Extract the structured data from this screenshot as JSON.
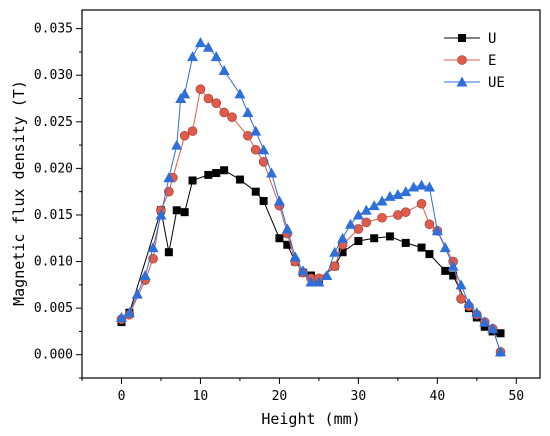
{
  "chart_data": {
    "type": "line",
    "xlabel": "Height (mm)",
    "ylabel": "Magnetic flux density (T)",
    "xlim": [
      -5,
      53
    ],
    "ylim": [
      -0.0025,
      0.037
    ],
    "xticks": [
      0,
      10,
      20,
      30,
      40,
      50
    ],
    "xtick_labels": [
      "0",
      "10",
      "20",
      "30",
      "40",
      "50"
    ],
    "yticks": [
      0.0,
      0.005,
      0.01,
      0.015,
      0.02,
      0.025,
      0.03,
      0.035
    ],
    "ytick_labels": [
      "0.000",
      "0.005",
      "0.010",
      "0.015",
      "0.020",
      "0.025",
      "0.030",
      "0.035"
    ],
    "grid": false,
    "legend_position": "top-right",
    "series": [
      {
        "name": "U",
        "color": "#000000",
        "marker": "square",
        "points": [
          [
            0,
            0.0035
          ],
          [
            1,
            0.0045
          ],
          [
            5,
            0.0155
          ],
          [
            6,
            0.011
          ],
          [
            7,
            0.0155
          ],
          [
            8,
            0.0153
          ],
          [
            9,
            0.0187
          ],
          [
            11,
            0.0193
          ],
          [
            12,
            0.0195
          ],
          [
            13,
            0.0198
          ],
          [
            15,
            0.0188
          ],
          [
            17,
            0.0175
          ],
          [
            18,
            0.0165
          ],
          [
            20,
            0.0125
          ],
          [
            21,
            0.0118
          ],
          [
            22,
            0.01
          ],
          [
            23,
            0.0088
          ],
          [
            24,
            0.0085
          ],
          [
            25,
            0.008
          ],
          [
            27,
            0.0095
          ],
          [
            28,
            0.011
          ],
          [
            30,
            0.0122
          ],
          [
            32,
            0.0125
          ],
          [
            34,
            0.0127
          ],
          [
            36,
            0.012
          ],
          [
            38,
            0.0115
          ],
          [
            39,
            0.0108
          ],
          [
            41,
            0.009
          ],
          [
            42,
            0.0085
          ],
          [
            44,
            0.005
          ],
          [
            45,
            0.004
          ],
          [
            46,
            0.003
          ],
          [
            47,
            0.0025
          ],
          [
            48,
            0.0023
          ]
        ]
      },
      {
        "name": "E",
        "color": "#e05b4a",
        "marker": "circle",
        "points": [
          [
            0,
            0.0038
          ],
          [
            1,
            0.0043
          ],
          [
            3,
            0.008
          ],
          [
            4,
            0.0103
          ],
          [
            5,
            0.0155
          ],
          [
            6,
            0.0175
          ],
          [
            6.5,
            0.019
          ],
          [
            8,
            0.0235
          ],
          [
            9,
            0.024
          ],
          [
            10,
            0.0285
          ],
          [
            11,
            0.0275
          ],
          [
            12,
            0.027
          ],
          [
            13,
            0.026
          ],
          [
            14,
            0.0255
          ],
          [
            16,
            0.0235
          ],
          [
            17,
            0.022
          ],
          [
            18,
            0.0207
          ],
          [
            20,
            0.016
          ],
          [
            21,
            0.013
          ],
          [
            22,
            0.01
          ],
          [
            23,
            0.0088
          ],
          [
            24,
            0.0082
          ],
          [
            25,
            0.0082
          ],
          [
            27,
            0.0095
          ],
          [
            28,
            0.0118
          ],
          [
            30,
            0.0135
          ],
          [
            31,
            0.0142
          ],
          [
            33,
            0.0147
          ],
          [
            35,
            0.015
          ],
          [
            36,
            0.0153
          ],
          [
            38,
            0.0162
          ],
          [
            39,
            0.014
          ],
          [
            40,
            0.0133
          ],
          [
            42,
            0.01
          ],
          [
            43,
            0.006
          ],
          [
            44,
            0.0052
          ],
          [
            45,
            0.0043
          ],
          [
            46,
            0.0035
          ],
          [
            47,
            0.0028
          ],
          [
            48,
            0.0003
          ]
        ]
      },
      {
        "name": "UE",
        "color": "#2e6fd9",
        "marker": "triangle",
        "points": [
          [
            0,
            0.004
          ],
          [
            1,
            0.0045
          ],
          [
            2,
            0.0065
          ],
          [
            3,
            0.0085
          ],
          [
            4,
            0.0115
          ],
          [
            5,
            0.015
          ],
          [
            6,
            0.019
          ],
          [
            7,
            0.0225
          ],
          [
            7.5,
            0.0275
          ],
          [
            8,
            0.028
          ],
          [
            9,
            0.032
          ],
          [
            10,
            0.0335
          ],
          [
            11,
            0.033
          ],
          [
            12,
            0.032
          ],
          [
            13,
            0.0305
          ],
          [
            15,
            0.028
          ],
          [
            16,
            0.026
          ],
          [
            17,
            0.024
          ],
          [
            18,
            0.022
          ],
          [
            19,
            0.0195
          ],
          [
            20,
            0.0165
          ],
          [
            21,
            0.0135
          ],
          [
            22,
            0.0105
          ],
          [
            23,
            0.009
          ],
          [
            24,
            0.0078
          ],
          [
            25,
            0.0078
          ],
          [
            26,
            0.0085
          ],
          [
            27,
            0.011
          ],
          [
            28,
            0.0125
          ],
          [
            29,
            0.014
          ],
          [
            30,
            0.015
          ],
          [
            31,
            0.0155
          ],
          [
            32,
            0.016
          ],
          [
            33,
            0.0165
          ],
          [
            34,
            0.017
          ],
          [
            35,
            0.0172
          ],
          [
            36,
            0.0175
          ],
          [
            37,
            0.018
          ],
          [
            38,
            0.0182
          ],
          [
            39,
            0.018
          ],
          [
            40,
            0.0133
          ],
          [
            41,
            0.0115
          ],
          [
            42,
            0.0095
          ],
          [
            43,
            0.0075
          ],
          [
            44,
            0.0055
          ],
          [
            45,
            0.0045
          ],
          [
            46,
            0.0035
          ],
          [
            47,
            0.0028
          ],
          [
            48,
            0.0003
          ]
        ]
      }
    ]
  }
}
